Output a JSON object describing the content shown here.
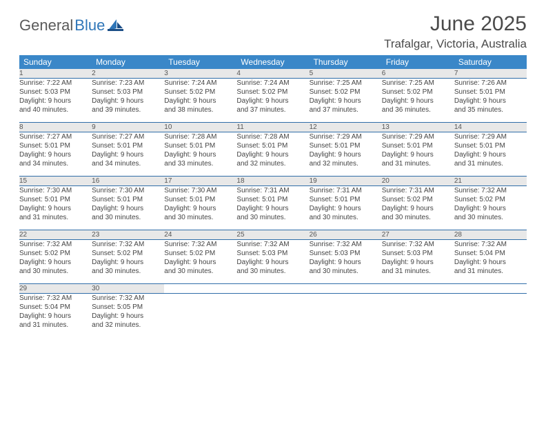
{
  "brand": {
    "word1": "General",
    "word2": "Blue"
  },
  "title": "June 2025",
  "location": "Trafalgar, Victoria, Australia",
  "colors": {
    "header_bg": "#3a87c8",
    "header_text": "#ffffff",
    "daynum_bg": "#e8e8e8",
    "row_border": "#2f6da8",
    "logo_gray": "#5a5a5a",
    "logo_blue": "#2f76b8",
    "text": "#444444"
  },
  "day_names": [
    "Sunday",
    "Monday",
    "Tuesday",
    "Wednesday",
    "Thursday",
    "Friday",
    "Saturday"
  ],
  "weeks": [
    [
      {
        "n": "1",
        "sunrise": "Sunrise: 7:22 AM",
        "sunset": "Sunset: 5:03 PM",
        "d1": "Daylight: 9 hours",
        "d2": "and 40 minutes."
      },
      {
        "n": "2",
        "sunrise": "Sunrise: 7:23 AM",
        "sunset": "Sunset: 5:03 PM",
        "d1": "Daylight: 9 hours",
        "d2": "and 39 minutes."
      },
      {
        "n": "3",
        "sunrise": "Sunrise: 7:24 AM",
        "sunset": "Sunset: 5:02 PM",
        "d1": "Daylight: 9 hours",
        "d2": "and 38 minutes."
      },
      {
        "n": "4",
        "sunrise": "Sunrise: 7:24 AM",
        "sunset": "Sunset: 5:02 PM",
        "d1": "Daylight: 9 hours",
        "d2": "and 37 minutes."
      },
      {
        "n": "5",
        "sunrise": "Sunrise: 7:25 AM",
        "sunset": "Sunset: 5:02 PM",
        "d1": "Daylight: 9 hours",
        "d2": "and 37 minutes."
      },
      {
        "n": "6",
        "sunrise": "Sunrise: 7:25 AM",
        "sunset": "Sunset: 5:02 PM",
        "d1": "Daylight: 9 hours",
        "d2": "and 36 minutes."
      },
      {
        "n": "7",
        "sunrise": "Sunrise: 7:26 AM",
        "sunset": "Sunset: 5:01 PM",
        "d1": "Daylight: 9 hours",
        "d2": "and 35 minutes."
      }
    ],
    [
      {
        "n": "8",
        "sunrise": "Sunrise: 7:27 AM",
        "sunset": "Sunset: 5:01 PM",
        "d1": "Daylight: 9 hours",
        "d2": "and 34 minutes."
      },
      {
        "n": "9",
        "sunrise": "Sunrise: 7:27 AM",
        "sunset": "Sunset: 5:01 PM",
        "d1": "Daylight: 9 hours",
        "d2": "and 34 minutes."
      },
      {
        "n": "10",
        "sunrise": "Sunrise: 7:28 AM",
        "sunset": "Sunset: 5:01 PM",
        "d1": "Daylight: 9 hours",
        "d2": "and 33 minutes."
      },
      {
        "n": "11",
        "sunrise": "Sunrise: 7:28 AM",
        "sunset": "Sunset: 5:01 PM",
        "d1": "Daylight: 9 hours",
        "d2": "and 32 minutes."
      },
      {
        "n": "12",
        "sunrise": "Sunrise: 7:29 AM",
        "sunset": "Sunset: 5:01 PM",
        "d1": "Daylight: 9 hours",
        "d2": "and 32 minutes."
      },
      {
        "n": "13",
        "sunrise": "Sunrise: 7:29 AM",
        "sunset": "Sunset: 5:01 PM",
        "d1": "Daylight: 9 hours",
        "d2": "and 31 minutes."
      },
      {
        "n": "14",
        "sunrise": "Sunrise: 7:29 AM",
        "sunset": "Sunset: 5:01 PM",
        "d1": "Daylight: 9 hours",
        "d2": "and 31 minutes."
      }
    ],
    [
      {
        "n": "15",
        "sunrise": "Sunrise: 7:30 AM",
        "sunset": "Sunset: 5:01 PM",
        "d1": "Daylight: 9 hours",
        "d2": "and 31 minutes."
      },
      {
        "n": "16",
        "sunrise": "Sunrise: 7:30 AM",
        "sunset": "Sunset: 5:01 PM",
        "d1": "Daylight: 9 hours",
        "d2": "and 30 minutes."
      },
      {
        "n": "17",
        "sunrise": "Sunrise: 7:30 AM",
        "sunset": "Sunset: 5:01 PM",
        "d1": "Daylight: 9 hours",
        "d2": "and 30 minutes."
      },
      {
        "n": "18",
        "sunrise": "Sunrise: 7:31 AM",
        "sunset": "Sunset: 5:01 PM",
        "d1": "Daylight: 9 hours",
        "d2": "and 30 minutes."
      },
      {
        "n": "19",
        "sunrise": "Sunrise: 7:31 AM",
        "sunset": "Sunset: 5:01 PM",
        "d1": "Daylight: 9 hours",
        "d2": "and 30 minutes."
      },
      {
        "n": "20",
        "sunrise": "Sunrise: 7:31 AM",
        "sunset": "Sunset: 5:02 PM",
        "d1": "Daylight: 9 hours",
        "d2": "and 30 minutes."
      },
      {
        "n": "21",
        "sunrise": "Sunrise: 7:32 AM",
        "sunset": "Sunset: 5:02 PM",
        "d1": "Daylight: 9 hours",
        "d2": "and 30 minutes."
      }
    ],
    [
      {
        "n": "22",
        "sunrise": "Sunrise: 7:32 AM",
        "sunset": "Sunset: 5:02 PM",
        "d1": "Daylight: 9 hours",
        "d2": "and 30 minutes."
      },
      {
        "n": "23",
        "sunrise": "Sunrise: 7:32 AM",
        "sunset": "Sunset: 5:02 PM",
        "d1": "Daylight: 9 hours",
        "d2": "and 30 minutes."
      },
      {
        "n": "24",
        "sunrise": "Sunrise: 7:32 AM",
        "sunset": "Sunset: 5:02 PM",
        "d1": "Daylight: 9 hours",
        "d2": "and 30 minutes."
      },
      {
        "n": "25",
        "sunrise": "Sunrise: 7:32 AM",
        "sunset": "Sunset: 5:03 PM",
        "d1": "Daylight: 9 hours",
        "d2": "and 30 minutes."
      },
      {
        "n": "26",
        "sunrise": "Sunrise: 7:32 AM",
        "sunset": "Sunset: 5:03 PM",
        "d1": "Daylight: 9 hours",
        "d2": "and 30 minutes."
      },
      {
        "n": "27",
        "sunrise": "Sunrise: 7:32 AM",
        "sunset": "Sunset: 5:03 PM",
        "d1": "Daylight: 9 hours",
        "d2": "and 31 minutes."
      },
      {
        "n": "28",
        "sunrise": "Sunrise: 7:32 AM",
        "sunset": "Sunset: 5:04 PM",
        "d1": "Daylight: 9 hours",
        "d2": "and 31 minutes."
      }
    ],
    [
      {
        "n": "29",
        "sunrise": "Sunrise: 7:32 AM",
        "sunset": "Sunset: 5:04 PM",
        "d1": "Daylight: 9 hours",
        "d2": "and 31 minutes."
      },
      {
        "n": "30",
        "sunrise": "Sunrise: 7:32 AM",
        "sunset": "Sunset: 5:05 PM",
        "d1": "Daylight: 9 hours",
        "d2": "and 32 minutes."
      },
      null,
      null,
      null,
      null,
      null
    ]
  ]
}
